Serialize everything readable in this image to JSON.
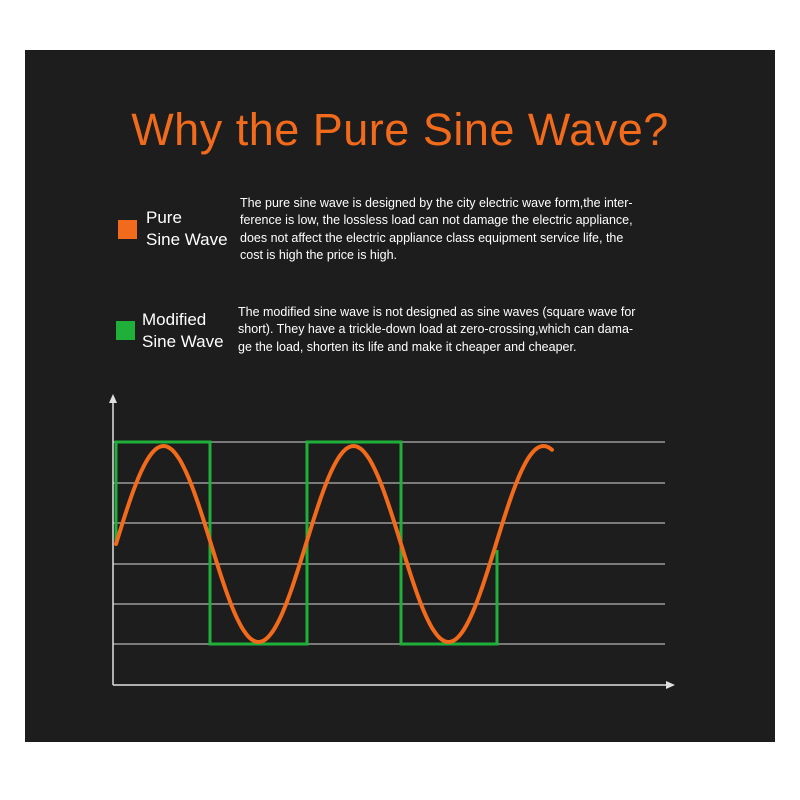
{
  "title": "Why the Pure Sine Wave?",
  "legend": [
    {
      "label_lines": [
        "Pure",
        "Sine Wave"
      ],
      "description_lines": [
        "The pure sine wave is designed by the city electric wave form,the inter-",
        "ference is low, the lossless load can not damage the electric appliance,",
        "does not affect the electric appliance class equipment service life, the",
        "cost is high the price is high."
      ]
    },
    {
      "label_lines": [
        "Modified",
        "Sine Wave"
      ],
      "description_lines": [
        "The modified sine wave is not designed as sine waves (square wave for",
        "short). They have a trickle-down load at zero-crossing,which can dama-",
        "ge the load, shorten its life and make it cheaper and cheaper."
      ]
    }
  ]
}
